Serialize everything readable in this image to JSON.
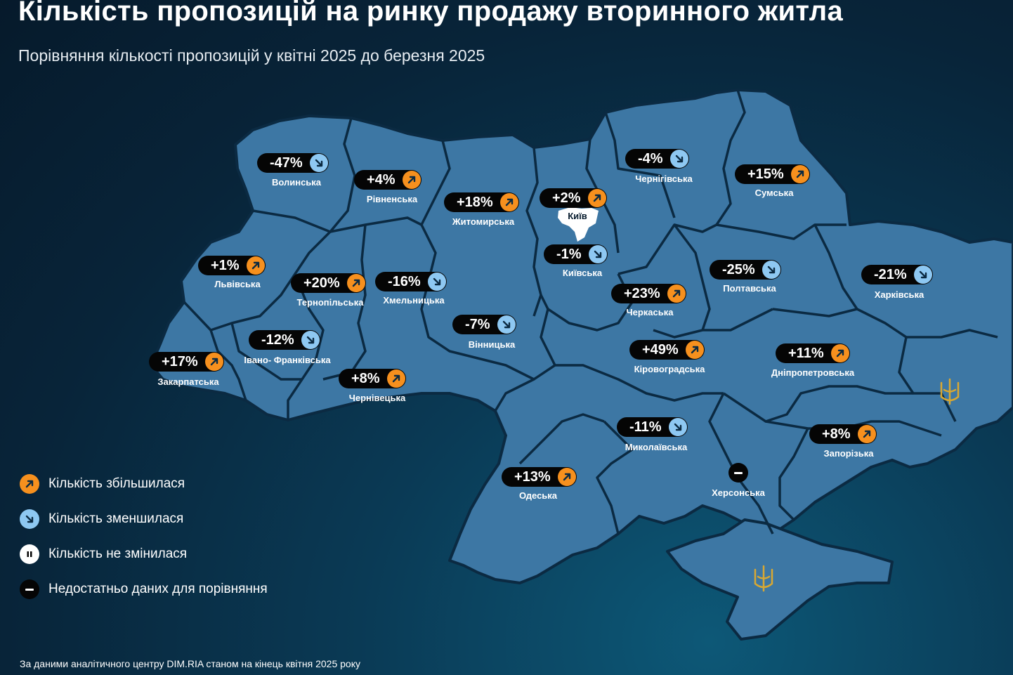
{
  "title": "Кількість пропозицій на ринку продажу вторинного житла",
  "subtitle": "Порівняння кількості пропозицій у квітні 2025 до березня 2025",
  "colors": {
    "increase": "#f6901e",
    "decrease": "#8ec8f2",
    "map_fill": "#3d77a4",
    "border": "#0b2a42",
    "badge": "#050505"
  },
  "regions": [
    {
      "name": "Волинська",
      "value": "-47%",
      "trend": "down"
    },
    {
      "name": "Рівненська",
      "value": "+4%",
      "trend": "up"
    },
    {
      "name": "Житомирська",
      "value": "+18%",
      "trend": "up"
    },
    {
      "name": "Київ",
      "value": "+2%",
      "trend": "up"
    },
    {
      "name": "Чернігівська",
      "value": "-4%",
      "trend": "down"
    },
    {
      "name": "Сумська",
      "value": "+15%",
      "trend": "up"
    },
    {
      "name": "Львівська",
      "value": "+1%",
      "trend": "up"
    },
    {
      "name": "Тернопільська",
      "value": "+20%",
      "trend": "up"
    },
    {
      "name": "Хмельницька",
      "value": "-16%",
      "trend": "down"
    },
    {
      "name": "Київська",
      "value": "-1%",
      "trend": "down"
    },
    {
      "name": "Полтавська",
      "value": "-25%",
      "trend": "down"
    },
    {
      "name": "Харківська",
      "value": "-21%",
      "trend": "down"
    },
    {
      "name": "Черкаська",
      "value": "+23%",
      "trend": "up"
    },
    {
      "name": "Вінницька",
      "value": "-7%",
      "trend": "down"
    },
    {
      "name": "Івано- Франківська",
      "value": "-12%",
      "trend": "down"
    },
    {
      "name": "Закарпатська",
      "value": "+17%",
      "trend": "up"
    },
    {
      "name": "Кіровоградська",
      "value": "+49%",
      "trend": "up"
    },
    {
      "name": "Дніпропетровська",
      "value": "+11%",
      "trend": "up"
    },
    {
      "name": "Чернівецька",
      "value": "+8%",
      "trend": "up"
    },
    {
      "name": "Миколаївська",
      "value": "-11%",
      "trend": "down"
    },
    {
      "name": "Запорізька",
      "value": "+8%",
      "trend": "up"
    },
    {
      "name": "Одеська",
      "value": "+13%",
      "trend": "up"
    },
    {
      "name": "Херсонська",
      "value": "",
      "trend": "nodata"
    }
  ],
  "legend": [
    {
      "icon": "arrow-up-right-icon",
      "label": "Кількість збільшилася"
    },
    {
      "icon": "arrow-down-right-icon",
      "label": "Кількість зменшилася"
    },
    {
      "icon": "pause-icon",
      "label": "Кількість не змінилася"
    },
    {
      "icon": "minus-icon",
      "label": "Недостатньо даних для порівняння"
    }
  ],
  "footer": "За даними аналітичного центру DIM.RIA станом на кінець квітня 2025 року"
}
